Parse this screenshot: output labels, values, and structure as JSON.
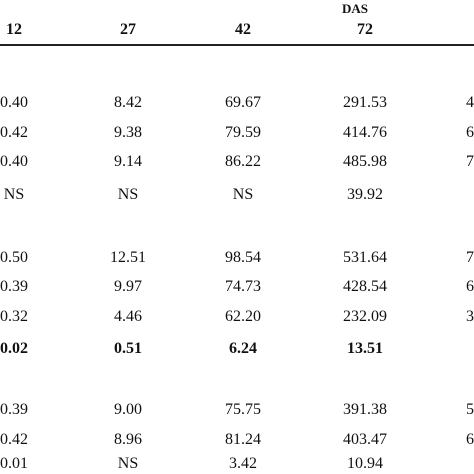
{
  "header": {
    "group": "DAS",
    "columns": [
      "12",
      "27",
      "42",
      "72"
    ]
  },
  "table": {
    "rows": [
      [
        "0.40",
        "8.42",
        "69.67",
        "291.53",
        "4"
      ],
      [
        "0.42",
        "9.38",
        "79.59",
        "414.76",
        "6"
      ],
      [
        "0.40",
        "9.14",
        "86.22",
        "485.98",
        "7"
      ],
      [
        "NS",
        "NS",
        "NS",
        "39.92"
      ],
      [
        "0.50",
        "12.51",
        "98.54",
        "531.64",
        "7"
      ],
      [
        "0.39",
        "9.97",
        "74.73",
        "428.54",
        "6"
      ],
      [
        "0.32",
        "4.46",
        "62.20",
        "232.09",
        "3"
      ],
      [
        "0.02",
        "0.51",
        "6.24",
        "13.51"
      ],
      [
        "0.39",
        "9.00",
        "75.75",
        "391.38",
        "5"
      ],
      [
        "0.42",
        "8.96",
        "81.24",
        "403.47",
        "6"
      ],
      [
        "0.01",
        "NS",
        "3.42",
        "10.94"
      ]
    ]
  }
}
